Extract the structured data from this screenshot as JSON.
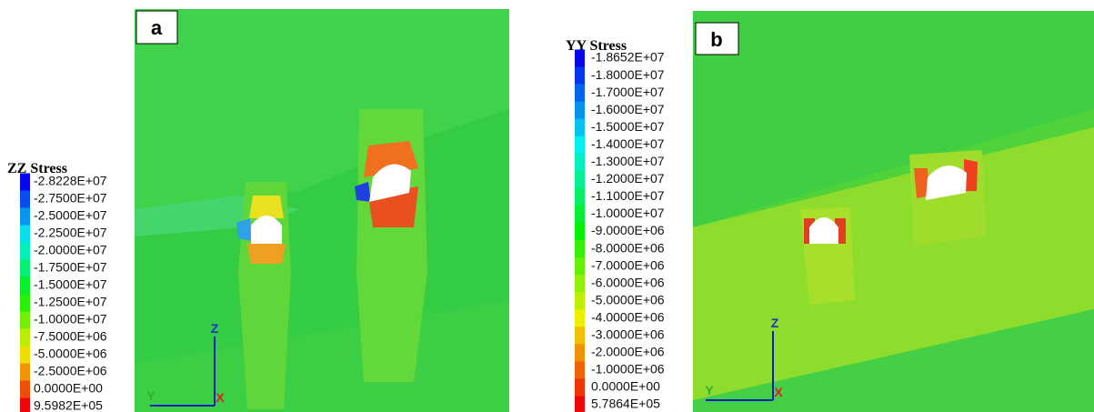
{
  "panels": [
    {
      "label": "a",
      "legend_title": "ZZ Stress",
      "legend": [
        "-2.8228E+07",
        "-2.7500E+07",
        "-2.5000E+07",
        "-2.2500E+07",
        "-2.0000E+07",
        "-1.7500E+07",
        "-1.5000E+07",
        "-1.2500E+07",
        "-1.0000E+07",
        "-7.5000E+06",
        "-5.0000E+06",
        "-2.5000E+06",
        "0.0000E+00",
        "9.5982E+05"
      ],
      "axes": {
        "z": "Z",
        "y": "Y",
        "x": "X"
      }
    },
    {
      "label": "b",
      "legend_title": "YY Stress",
      "legend": [
        "-1.8652E+07",
        "-1.8000E+07",
        "-1.7000E+07",
        "-1.6000E+07",
        "-1.5000E+07",
        "-1.4000E+07",
        "-1.3000E+07",
        "-1.2000E+07",
        "-1.1000E+07",
        "-1.0000E+07",
        "-9.0000E+06",
        "-8.0000E+06",
        "-7.0000E+06",
        "-6.0000E+06",
        "-5.0000E+06",
        "-4.0000E+06",
        "-3.0000E+06",
        "-2.0000E+06",
        "-1.0000E+06",
        "0.0000E+00",
        "5.7864E+05"
      ],
      "axes": {
        "z": "Z",
        "y": "Y",
        "x": "X"
      }
    }
  ]
}
